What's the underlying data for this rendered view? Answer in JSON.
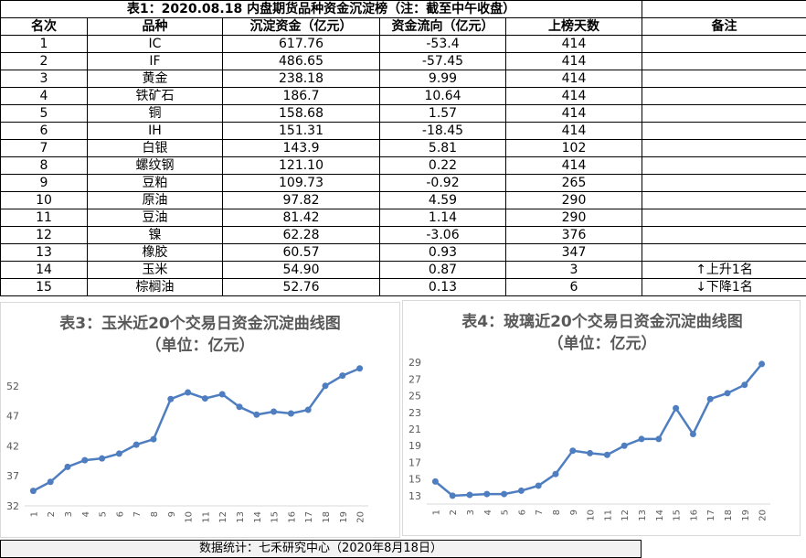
{
  "table": {
    "title": "表1：2020.08.18 内盘期货品种资金沉淀榜（注：截至中午收盘）",
    "header": [
      "名次",
      "品种",
      "沉淀资金（亿元）",
      "资金流向（亿元）",
      "上榜天数",
      "备注"
    ],
    "rows": [
      [
        "1",
        "IC",
        "617.76",
        "-53.4",
        "414"
      ],
      [
        "2",
        "IF",
        "486.65",
        "-57.45",
        "414"
      ],
      [
        "3",
        "黄金",
        "238.18",
        "9.99",
        "414"
      ],
      [
        "4",
        "铁矿石",
        "186.7",
        "10.64",
        "414"
      ],
      [
        "5",
        "铜",
        "158.68",
        "1.57",
        "414"
      ],
      [
        "6",
        "IH",
        "151.31",
        "-18.45",
        "414"
      ],
      [
        "7",
        "白银",
        "143.9",
        "5.81",
        "102"
      ],
      [
        "8",
        "螺纹钢",
        "121.10",
        "0.22",
        "414"
      ],
      [
        "9",
        "豆粕",
        "109.73",
        "-0.92",
        "265"
      ],
      [
        "10",
        "原油",
        "97.82",
        "4.59",
        "290"
      ],
      [
        "11",
        "豆油",
        "81.42",
        "1.14",
        "290"
      ],
      [
        "12",
        "镍",
        "62.28",
        "-3.06",
        "376"
      ],
      [
        "13",
        "橡胶",
        "60.57",
        "0.93",
        "347"
      ],
      [
        "14",
        "玉米",
        "54.90",
        "0.87",
        "3",
        "↑上升1名"
      ],
      [
        "15",
        "棕榈油",
        "52.76",
        "0.13",
        "6",
        "↓下降1名"
      ]
    ]
  },
  "chart_data": [
    {
      "type": "line",
      "title": "表3：玉米近20个交易日资金沉淀曲线图",
      "subtitle": "（单位：亿元）",
      "categories": [
        "1",
        "2",
        "3",
        "4",
        "5",
        "6",
        "7",
        "8",
        "9",
        "10",
        "11",
        "12",
        "13",
        "14",
        "15",
        "16",
        "17",
        "18",
        "19",
        "20"
      ],
      "values": [
        34.5,
        36.0,
        38.5,
        39.6,
        39.9,
        40.7,
        42.2,
        43.1,
        49.8,
        50.9,
        49.9,
        50.6,
        48.5,
        47.2,
        47.7,
        47.4,
        48.0,
        52.0,
        53.7,
        54.9
      ],
      "color": "#4f7ec0",
      "ylim": [
        32,
        57
      ],
      "yticks": [
        32,
        37,
        42,
        47,
        52
      ]
    },
    {
      "type": "line",
      "title": "表4：玻璃近20个交易日资金沉淀曲线图",
      "subtitle": "（单位：亿元）",
      "categories": [
        "1",
        "2",
        "3",
        "4",
        "5",
        "6",
        "7",
        "8",
        "9",
        "10",
        "11",
        "12",
        "13",
        "14",
        "15",
        "16",
        "17",
        "18",
        "19",
        "20"
      ],
      "values": [
        14.7,
        13.0,
        13.1,
        13.2,
        13.2,
        13.6,
        14.2,
        15.6,
        18.4,
        18.1,
        17.9,
        19.0,
        19.8,
        19.8,
        23.5,
        20.4,
        24.6,
        25.3,
        26.3,
        28.8
      ],
      "color": "#4f7ec0",
      "ylim": [
        12,
        30
      ],
      "yticks": [
        13,
        15,
        17,
        19,
        21,
        23,
        25,
        27,
        29
      ]
    }
  ],
  "footer": "数据统计：七禾研究中心（2020年8月18日）"
}
